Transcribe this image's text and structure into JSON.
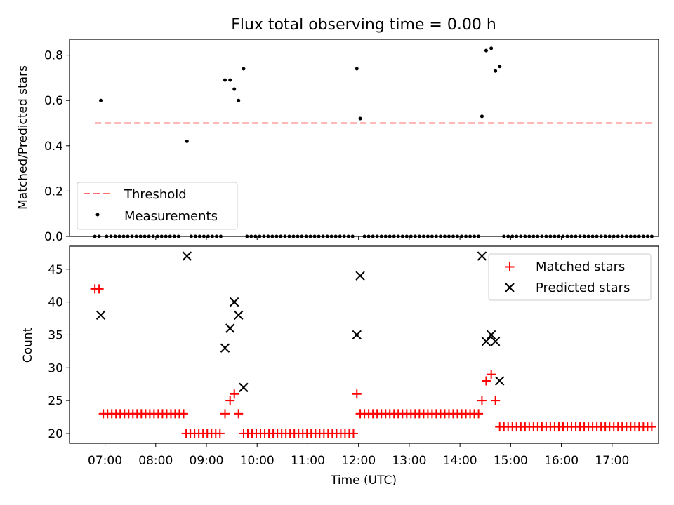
{
  "chart_data": [
    {
      "type": "scatter",
      "title": "Flux total observing time = 0.00 h",
      "xlabel": "",
      "ylabel": "Matched/Predicted stars",
      "xlim": [
        "06:18",
        "17:55"
      ],
      "ylim": [
        0,
        0.87
      ],
      "yticks": [
        0.0,
        0.2,
        0.4,
        0.6,
        0.8
      ],
      "ytick_labels": [
        "0.0",
        "0.2",
        "0.4",
        "0.6",
        "0.8"
      ],
      "grid": false,
      "legend_position": "lower-left",
      "threshold": {
        "name": "Threshold",
        "value": 0.5,
        "x_range": [
          "06:48",
          "17:48"
        ],
        "color": "#ff7070",
        "style": "dashed"
      },
      "series": [
        {
          "name": "Measurements",
          "marker": "dot",
          "color": "#000000",
          "points": [
            [
              "06:55",
              0.6
            ],
            [
              "08:37",
              0.42
            ],
            [
              "09:22",
              0.69
            ],
            [
              "09:28",
              0.69
            ],
            [
              "09:33",
              0.65
            ],
            [
              "09:38",
              0.6
            ],
            [
              "09:44",
              0.74
            ],
            [
              "11:58",
              0.74
            ],
            [
              "12:02",
              0.52
            ],
            [
              "14:26",
              0.53
            ],
            [
              "14:31",
              0.82
            ],
            [
              "14:37",
              0.83
            ],
            [
              "14:42",
              0.73
            ],
            [
              "14:47",
              0.75
            ]
          ],
          "zero_segments": [
            {
              "start": "06:48",
              "end": "06:53",
              "step_min": 5
            },
            {
              "start": "07:02",
              "end": "08:31",
              "step_min": 5
            },
            {
              "start": "08:42",
              "end": "09:17",
              "step_min": 5
            },
            {
              "start": "09:48",
              "end": "11:55",
              "step_min": 5
            },
            {
              "start": "12:07",
              "end": "14:22",
              "step_min": 5
            },
            {
              "start": "14:52",
              "end": "17:48",
              "step_min": 5
            }
          ]
        }
      ]
    },
    {
      "type": "scatter",
      "title": "",
      "xlabel": "Time (UTC)",
      "ylabel": "Count",
      "xlim": [
        "06:18",
        "17:55"
      ],
      "ylim": [
        18.5,
        48.5
      ],
      "yticks": [
        20,
        25,
        30,
        35,
        40,
        45
      ],
      "ytick_labels": [
        "20",
        "25",
        "30",
        "35",
        "40",
        "45"
      ],
      "xticks": [
        "07:00",
        "08:00",
        "09:00",
        "10:00",
        "11:00",
        "12:00",
        "13:00",
        "14:00",
        "15:00",
        "16:00",
        "17:00"
      ],
      "grid": false,
      "legend_position": "upper-right",
      "series": [
        {
          "name": "Matched stars",
          "marker": "plus",
          "color": "#ff0000",
          "points": [
            [
              "06:48",
              42
            ],
            [
              "06:53",
              42
            ],
            [
              "09:22",
              23
            ],
            [
              "09:28",
              25
            ],
            [
              "09:33",
              26
            ],
            [
              "09:38",
              23
            ],
            [
              "11:58",
              26
            ],
            [
              "14:26",
              25
            ],
            [
              "14:31",
              28
            ],
            [
              "14:37",
              29
            ],
            [
              "14:42",
              25
            ]
          ],
          "runs": [
            {
              "start": "06:58",
              "end": "08:33",
              "step_min": 5,
              "value": 23
            },
            {
              "start": "08:36",
              "end": "09:17",
              "step_min": 5,
              "value": 20
            },
            {
              "start": "09:44",
              "end": "11:54",
              "step_min": 5,
              "value": 20
            },
            {
              "start": "12:02",
              "end": "14:22",
              "step_min": 5,
              "value": 23
            },
            {
              "start": "14:47",
              "end": "17:48",
              "step_min": 5,
              "value": 21
            }
          ]
        },
        {
          "name": "Predicted stars",
          "marker": "x",
          "color": "#000000",
          "points": [
            [
              "06:55",
              38
            ],
            [
              "08:37",
              47
            ],
            [
              "09:22",
              33
            ],
            [
              "09:28",
              36
            ],
            [
              "09:33",
              40
            ],
            [
              "09:38",
              38
            ],
            [
              "09:44",
              27
            ],
            [
              "11:58",
              35
            ],
            [
              "12:02",
              44
            ],
            [
              "14:26",
              47
            ],
            [
              "14:31",
              34
            ],
            [
              "14:37",
              35
            ],
            [
              "14:42",
              34
            ],
            [
              "14:47",
              28
            ]
          ]
        }
      ]
    }
  ]
}
